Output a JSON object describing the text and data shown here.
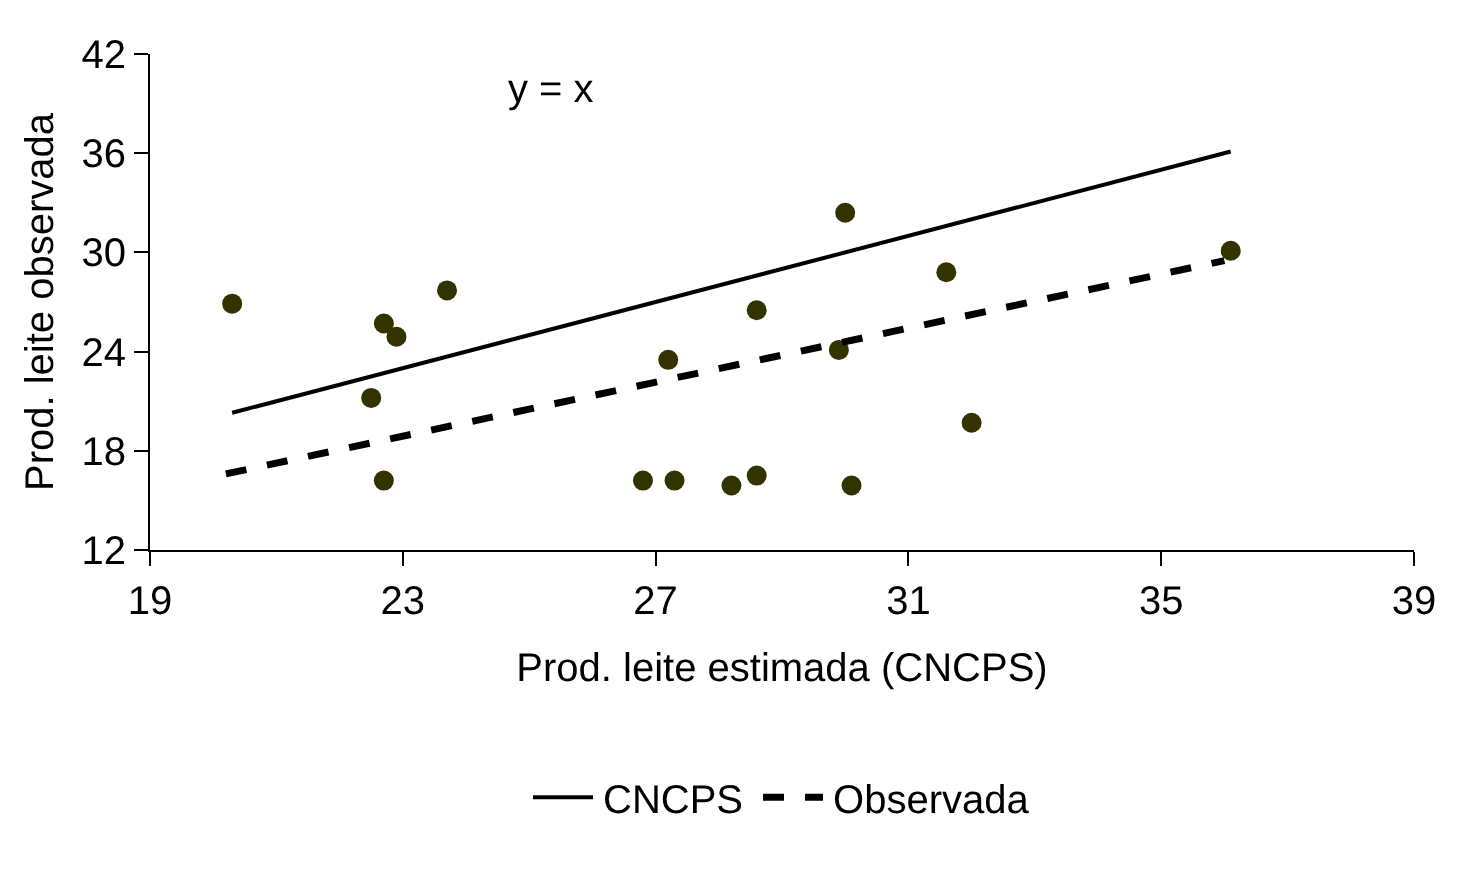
{
  "chart_data": {
    "type": "scatter",
    "xlabel": "Prod. leite estimada (CNCPS)",
    "ylabel": "Prod. leite observada",
    "annotations": [
      "y = x"
    ],
    "xlim": [
      19,
      39
    ],
    "xticks": [
      19,
      23,
      27,
      31,
      35,
      39
    ],
    "ylim": [
      12,
      42
    ],
    "yticks": [
      12,
      18,
      24,
      30,
      36,
      42
    ],
    "legend": "bottom",
    "marker": "circle",
    "series": [
      {
        "color": "#333300",
        "x": [
          20.3,
          22.5,
          22.7,
          22.9,
          23.7,
          22.7,
          27.2,
          26.8,
          27.3,
          28.2,
          28.6,
          28.6,
          30.0,
          29.9,
          30.1,
          31.6,
          32.0,
          36.1
        ],
        "values": [
          26.9,
          21.2,
          25.7,
          24.9,
          27.7,
          16.2,
          23.5,
          16.2,
          16.2,
          15.9,
          16.5,
          26.5,
          32.4,
          24.1,
          15.9,
          28.8,
          19.7,
          30.1
        ]
      },
      {
        "type": "line",
        "name": "CNCPS",
        "color": "#000000",
        "line_style": "solid",
        "marker": "none",
        "x": [
          20.3,
          36.1
        ],
        "values": [
          20.3,
          36.1
        ]
      },
      {
        "type": "line",
        "name": "Observada",
        "color": "#000000",
        "line_style": "dashed",
        "marker": "none",
        "x": [
          20.2,
          36.0
        ],
        "values": [
          16.6,
          29.5
        ]
      }
    ]
  }
}
